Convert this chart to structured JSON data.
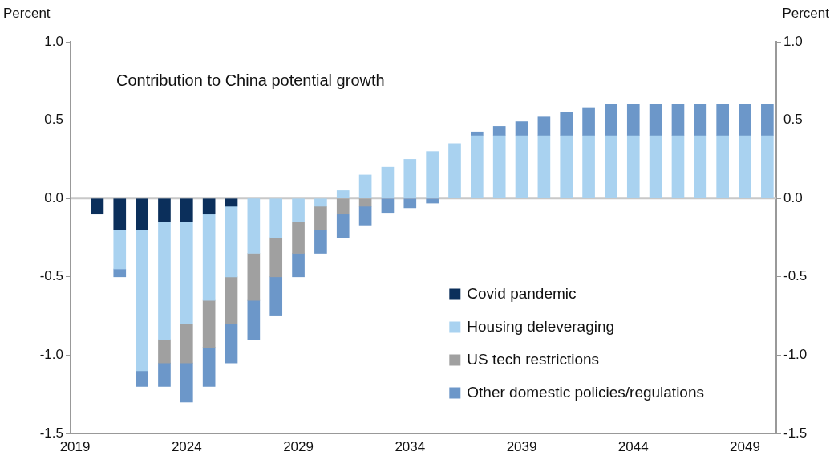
{
  "chart_data": {
    "type": "bar",
    "stacked": true,
    "title": "Contribution to China potential growth",
    "ylabel": "Percent",
    "y2label": "Percent",
    "x": [
      2020,
      2021,
      2022,
      2023,
      2024,
      2025,
      2026,
      2027,
      2028,
      2029,
      2030,
      2031,
      2032,
      2033,
      2034,
      2035,
      2036,
      2037,
      2038,
      2039,
      2040,
      2041,
      2042,
      2043,
      2044,
      2045,
      2046,
      2047,
      2048,
      2049,
      2050
    ],
    "series": [
      {
        "name": "Covid pandemic",
        "color": "#0b2f5b",
        "values": [
          -0.1,
          -0.2,
          -0.2,
          -0.15,
          -0.15,
          -0.1,
          -0.05,
          null,
          null,
          null,
          null,
          null,
          null,
          null,
          null,
          null,
          null,
          null,
          null,
          null,
          null,
          null,
          null,
          null,
          null,
          null,
          null,
          null,
          null,
          null,
          null
        ]
      },
      {
        "name": "Housing deleveraging",
        "color": "#a9d2f0",
        "values": [
          null,
          -0.25,
          -0.9,
          -0.75,
          -0.65,
          -0.55,
          -0.45,
          -0.35,
          -0.25,
          -0.15,
          -0.05,
          0.05,
          0.15,
          0.2,
          0.25,
          0.3,
          0.35,
          0.4,
          0.4,
          0.4,
          0.4,
          0.4,
          0.4,
          0.4,
          0.4,
          0.4,
          0.4,
          0.4,
          0.4,
          0.4,
          0.4
        ]
      },
      {
        "name": "US tech restrictions",
        "color": "#a0a0a0",
        "values": [
          null,
          null,
          null,
          -0.15,
          -0.25,
          -0.3,
          -0.3,
          -0.3,
          -0.25,
          -0.2,
          -0.15,
          -0.1,
          -0.05,
          null,
          null,
          null,
          null,
          null,
          null,
          null,
          null,
          null,
          null,
          null,
          null,
          null,
          null,
          null,
          null,
          null,
          null
        ]
      },
      {
        "name": "Other domestic policies/regulations",
        "color": "#6c97c9",
        "values": [
          null,
          -0.05,
          -0.1,
          -0.15,
          -0.25,
          -0.25,
          -0.25,
          -0.25,
          -0.25,
          -0.15,
          -0.15,
          -0.15,
          -0.12,
          -0.09,
          -0.06,
          -0.03,
          null,
          0.025,
          0.06,
          0.09,
          0.12,
          0.15,
          0.18,
          0.2,
          0.2,
          0.2,
          0.2,
          0.2,
          0.2,
          0.2,
          0.2
        ]
      }
    ],
    "xlim": [
      2018.8,
      2050.4
    ],
    "xticks": [
      2019,
      2024,
      2029,
      2034,
      2039,
      2044,
      2049
    ],
    "ylim": [
      -1.5,
      1
    ],
    "yticks": [
      {
        "value": -1.5,
        "label": "-1.5"
      },
      {
        "value": -1,
        "label": "-1.0"
      },
      -0.5,
      {
        "value": 0,
        "label": "0.0"
      },
      0.5,
      {
        "value": 1,
        "label": "1.0"
      }
    ],
    "y2lim": [
      -1.5,
      1
    ],
    "y2ticks": [
      {
        "value": -1.5,
        "label": "-1.5"
      },
      {
        "value": -1,
        "label": "-1.0"
      },
      -0.5,
      {
        "value": 0,
        "label": "0.0"
      },
      0.5,
      {
        "value": 1,
        "label": "1.0"
      }
    ],
    "ref_lines": [
      {
        "axis": "y",
        "value": 0,
        "color": "#c8c8c8"
      }
    ],
    "legend": "bottom right"
  }
}
